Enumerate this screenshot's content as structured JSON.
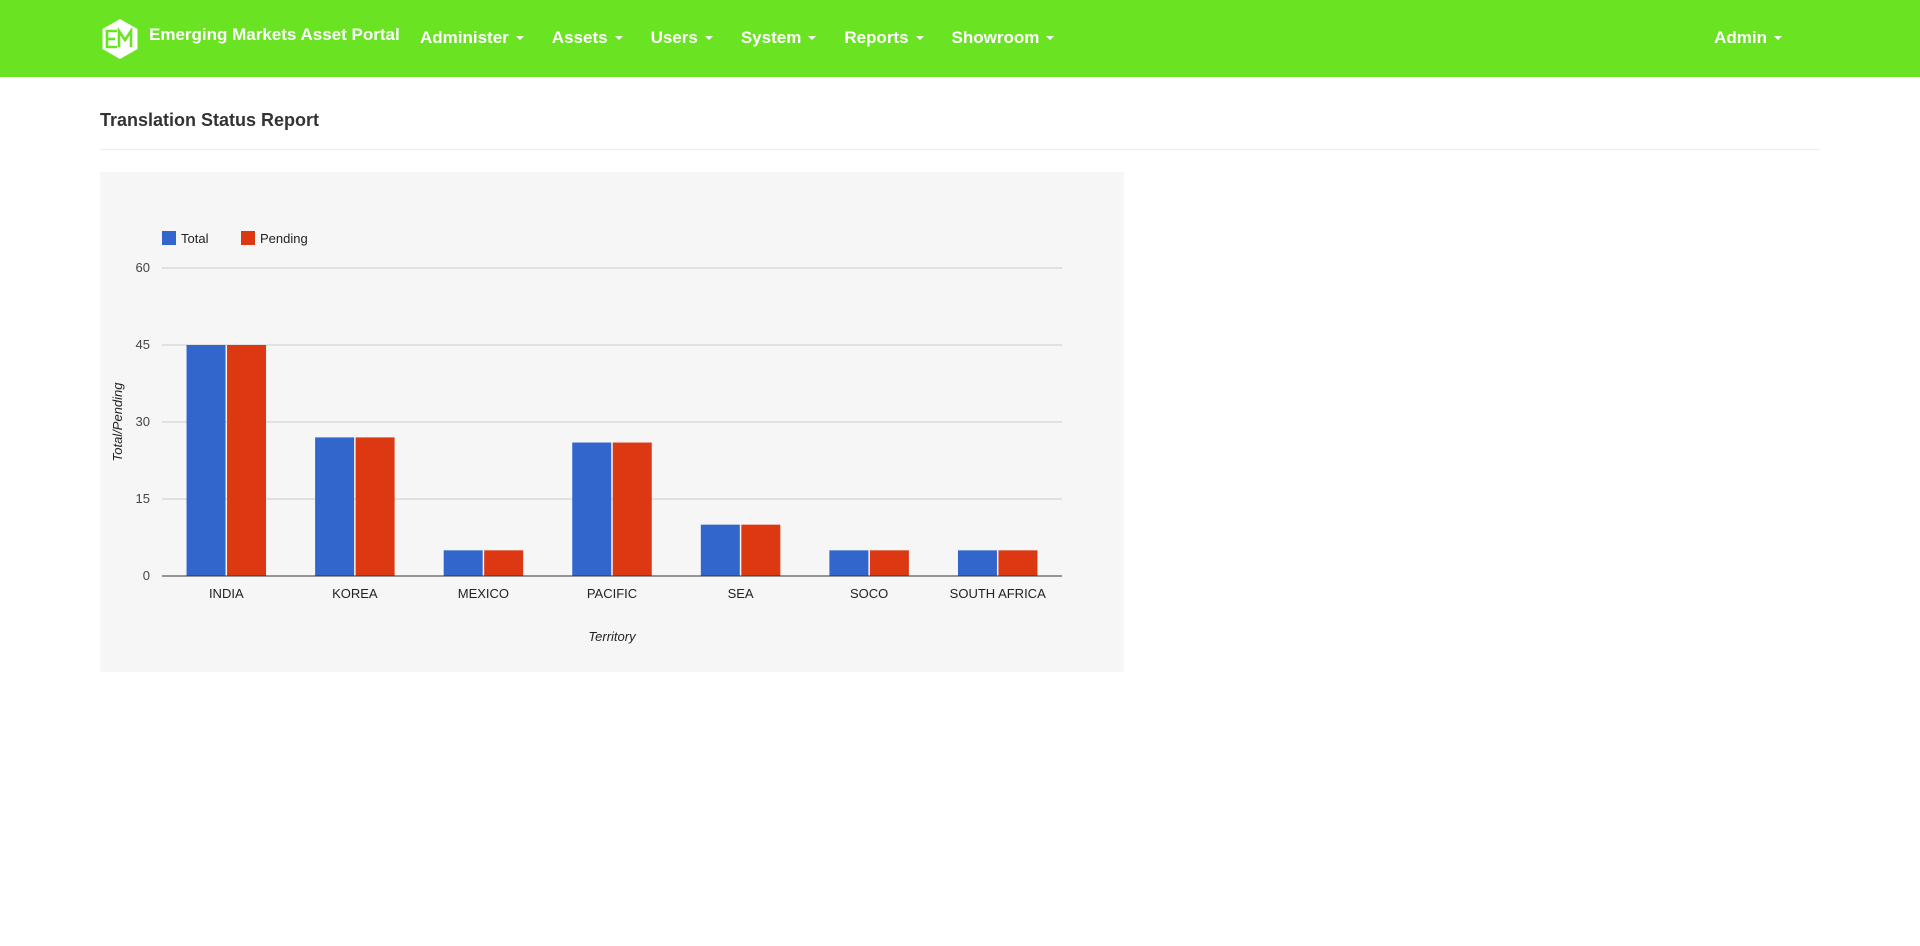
{
  "navbar": {
    "brand_title": "Emerging Markets Asset Portal",
    "brand_logo": "em-hexagon-logo",
    "menu": [
      {
        "name": "administer",
        "label": "Administer"
      },
      {
        "name": "assets",
        "label": "Assets"
      },
      {
        "name": "users",
        "label": "Users"
      },
      {
        "name": "system",
        "label": "System"
      },
      {
        "name": "reports",
        "label": "Reports"
      },
      {
        "name": "showroom",
        "label": "Showroom"
      }
    ],
    "user_menu": {
      "label": "Admin"
    }
  },
  "page": {
    "title": "Translation Status Report"
  },
  "colors": {
    "navbar": "#6ae322",
    "total": "#3366cc",
    "pending": "#dc3912",
    "panel": "#f6f6f6"
  },
  "chart_data": {
    "type": "bar",
    "title": "",
    "xlabel": "Territory",
    "ylabel": "Total/Pending",
    "categories": [
      "INDIA",
      "KOREA",
      "MEXICO",
      "PACIFIC",
      "SEA",
      "SOCO",
      "SOUTH AFRICA"
    ],
    "series": [
      {
        "name": "Total",
        "color": "#3366cc",
        "values": [
          45,
          27,
          5,
          26,
          10,
          5,
          5
        ]
      },
      {
        "name": "Pending",
        "color": "#dc3912",
        "values": [
          45,
          27,
          5,
          26,
          10,
          5,
          5
        ]
      }
    ],
    "ylim": [
      0,
      60
    ],
    "yticks": [
      0,
      15,
      30,
      45,
      60
    ],
    "grid": true,
    "legend": "top-left"
  }
}
